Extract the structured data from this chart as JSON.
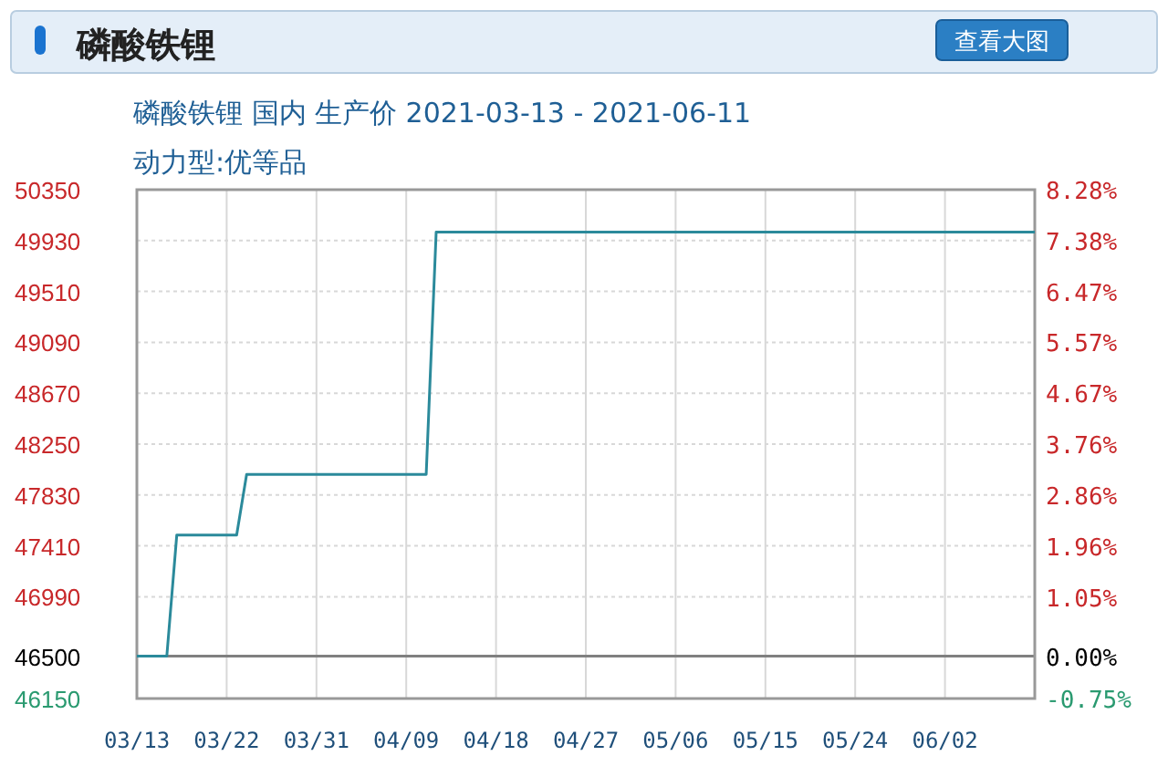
{
  "chart_data": {
    "type": "line",
    "title": "磷酸铁锂",
    "subtitle": "磷酸铁锂 国内 生产价 2021-03-13 - 2021-06-11",
    "annotations": [
      "动力型:优等品",
      "查看大图"
    ],
    "x": [
      "2021-03-13",
      "2021-03-16",
      "2021-03-17",
      "2021-03-23",
      "2021-03-24",
      "2021-04-11",
      "2021-04-12",
      "2021-06-11"
    ],
    "series": [
      {
        "color": "#2b8a9b",
        "values": [
          46500,
          46500,
          47500,
          47500,
          48000,
          48000,
          50000,
          50000
        ]
      }
    ],
    "xlim": [
      "2021-03-13",
      "2021-06-11"
    ],
    "xticks": [
      {
        "value": "2021-03-13",
        "label": "03/13"
      },
      {
        "value": "2021-03-22",
        "label": "03/22"
      },
      {
        "value": "2021-03-31",
        "label": "03/31"
      },
      {
        "value": "2021-04-09",
        "label": "04/09"
      },
      {
        "value": "2021-04-18",
        "label": "04/18"
      },
      {
        "value": "2021-04-27",
        "label": "04/27"
      },
      {
        "value": "2021-05-06",
        "label": "05/06"
      },
      {
        "value": "2021-05-15",
        "label": "05/15"
      },
      {
        "value": "2021-05-24",
        "label": "05/24"
      },
      {
        "value": "2021-06-02",
        "label": "06/02"
      }
    ],
    "ylim": [
      46150,
      50350
    ],
    "yticks": [
      46150,
      46500,
      46990,
      47410,
      47830,
      48250,
      48670,
      49090,
      49510,
      49930,
      50350
    ],
    "y2lim": [
      -0.75,
      8.28
    ],
    "y2ticks": [
      {
        "value": -0.75,
        "label": "-0.75%"
      },
      {
        "value": 0,
        "label": "0.00%"
      },
      {
        "value": 1.05,
        "label": "1.05%"
      },
      {
        "value": 1.96,
        "label": "1.96%"
      },
      {
        "value": 2.86,
        "label": "2.86%"
      },
      {
        "value": 3.76,
        "label": "3.76%"
      },
      {
        "value": 4.67,
        "label": "4.67%"
      },
      {
        "value": 5.57,
        "label": "5.57%"
      },
      {
        "value": 6.47,
        "label": "6.47%"
      },
      {
        "value": 7.38,
        "label": "7.38%"
      },
      {
        "value": 8.28,
        "label": "8.28%"
      }
    ],
    "ref_lines": [
      {
        "axis": "y",
        "value": 46500,
        "color": "#808080"
      }
    ],
    "grid": true
  }
}
